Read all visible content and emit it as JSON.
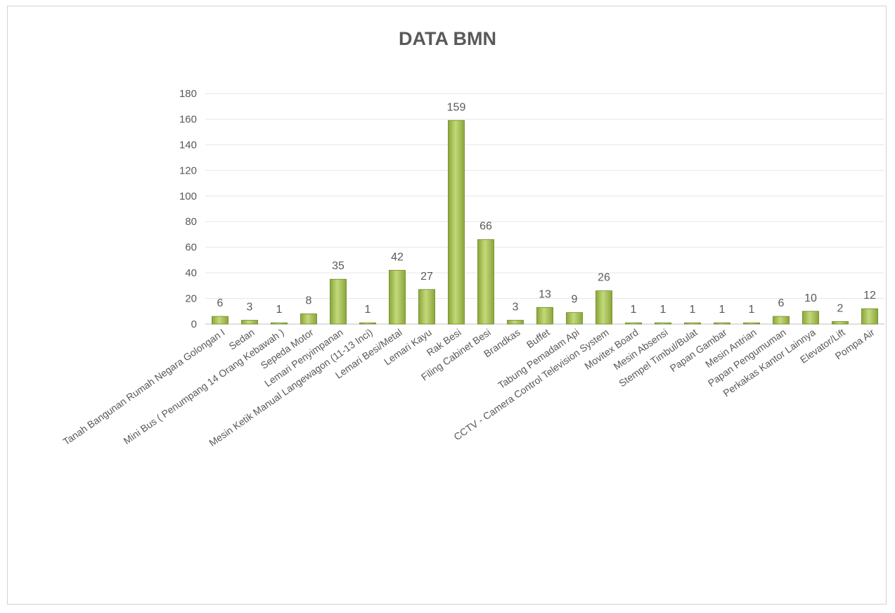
{
  "chart_data": {
    "type": "bar",
    "title": "DATA BMN",
    "xlabel": "",
    "ylabel": "",
    "ylim": [
      0,
      180
    ],
    "yticks": [
      0,
      20,
      40,
      60,
      80,
      100,
      120,
      140,
      160,
      180
    ],
    "grid": true,
    "legend": "none",
    "bar_color": "#8aa63a",
    "bar_highlight": "#c4d97a",
    "categories": [
      "Tanah Bangunan Rumah Negara Golongan I",
      "Sedan",
      "Mini Bus ( Penumpang 14 Orang Kebawah )",
      "Sepeda Motor",
      "Lemari Penyimpanan",
      "Mesin Ketik Manual Langewagon (11-13 Inci)",
      "Lemari Besi/Metal",
      "Lemari Kayu",
      "Rak Besi",
      "Filing Cabinet Besi",
      "Brandkas",
      "Buffet",
      "Tabung Pemadam Api",
      "CCTV - Camera Control Television System",
      "Movitex Board",
      "Mesin Absensi",
      "Stempel Timbul/Bulat",
      "Papan Gambar",
      "Mesin Antrian",
      "Papan Pengumuman",
      "Perkakas Kantor Lainnya",
      "Elevator/Lift",
      "Pompa Air"
    ],
    "values": [
      6,
      3,
      1,
      8,
      35,
      1,
      42,
      27,
      159,
      66,
      3,
      13,
      9,
      26,
      1,
      1,
      1,
      1,
      1,
      6,
      10,
      2,
      12
    ]
  }
}
